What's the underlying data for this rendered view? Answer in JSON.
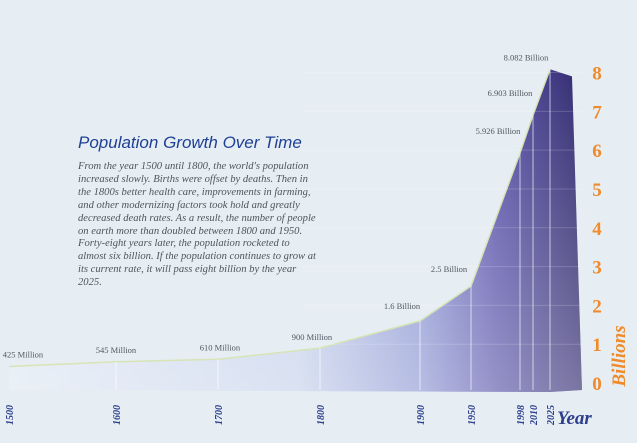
{
  "title": "Population Growth Over Time",
  "body_text": "From the year 1500 until 1800, the world's population increased slowly. Births were offset by deaths. Then in the 1800s better health care, improvements in farming, and other modernizing factors took hold and greatly decreased death rates. As a result, the number of people on earth more than doubled between 1800 and 1950. Forty-eight years later, the population rocketed to almost six billion. If the population continues to grow at its current rate, it will pass eight billion by the year 2025.",
  "colors": {
    "background": "#e6eef3",
    "title": "#1f3f95",
    "body": "#4e555c",
    "axis_numbers": "#f08a2a",
    "axis_title": "#2c3f8e",
    "fill_light": "#dbe6f3",
    "fill_dark": "#332b6e",
    "top_edge": "#d7e4b5"
  },
  "chart_data": {
    "type": "area",
    "x": [
      "1500",
      "1600",
      "1700",
      "1800",
      "1900",
      "1950",
      "1998",
      "2010",
      "2025"
    ],
    "values": [
      0.425,
      0.545,
      0.61,
      0.9,
      1.6,
      2.5,
      5.926,
      6.903,
      8.082
    ],
    "data_labels": [
      "425 Million",
      "545 Million",
      "610 Million",
      "900 Million",
      "1.6 Billion",
      "2.5 Billion",
      "5.926 Billion",
      "6.903 Billion",
      "8.082 Billion"
    ],
    "xlabel": "Year",
    "ylabel": "Billions",
    "y_ticks": [
      "0",
      "1",
      "2",
      "3",
      "4",
      "5",
      "6",
      "7",
      "8"
    ],
    "ylim": [
      0,
      8.4
    ]
  }
}
